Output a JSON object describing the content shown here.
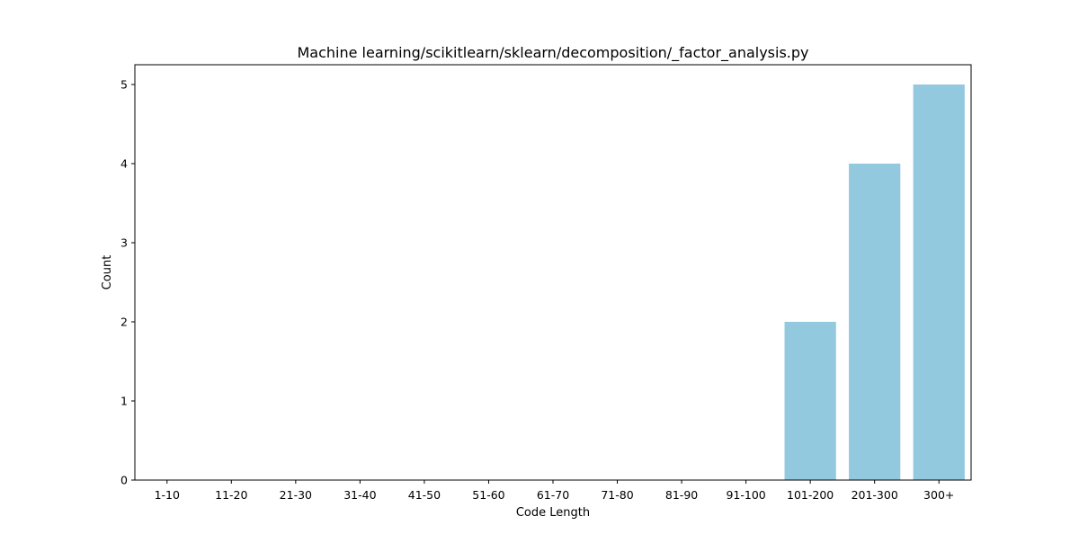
{
  "chart_data": {
    "type": "bar",
    "title": "Machine learning/scikitlearn/sklearn/decomposition/_factor_analysis.py",
    "xlabel": "Code Length",
    "ylabel": "Count",
    "categories": [
      "1-10",
      "11-20",
      "21-30",
      "31-40",
      "41-50",
      "51-60",
      "61-70",
      "71-80",
      "81-90",
      "91-100",
      "101-200",
      "201-300",
      "300+"
    ],
    "values": [
      0,
      0,
      0,
      0,
      0,
      0,
      0,
      0,
      0,
      0,
      2,
      4,
      5
    ],
    "ylim": [
      0,
      5.25
    ],
    "yticks": [
      0,
      1,
      2,
      3,
      4,
      5
    ],
    "bar_color": "#92c9df",
    "grid": false,
    "legend": "none"
  }
}
